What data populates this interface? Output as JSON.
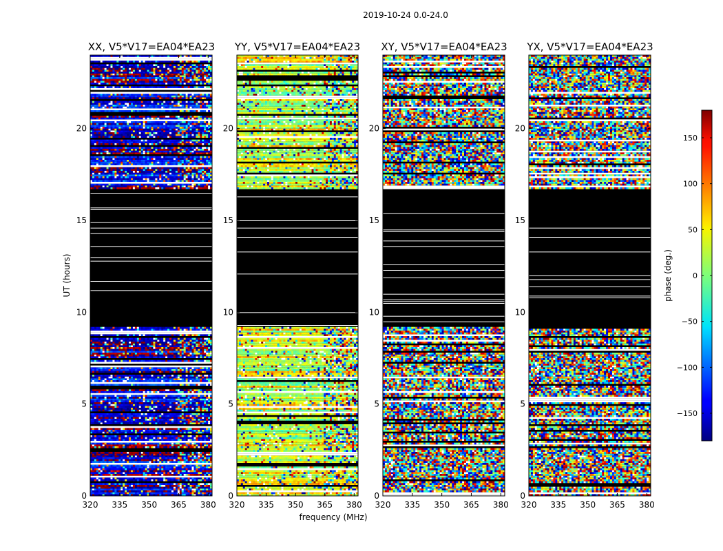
{
  "figure": {
    "suptitle": "2019-10-24 0.0-24.0"
  },
  "chart_data": {
    "type": "heatmap",
    "xlabel": "frequency (MHz)",
    "ylabel": "UT (hours)",
    "xlim": [
      320,
      382
    ],
    "ylim": [
      0,
      24
    ],
    "xticks": [
      "320",
      "335",
      "350",
      "365",
      "380"
    ],
    "xtick_values": [
      320,
      335,
      350,
      365,
      380
    ],
    "yticks": [
      "0",
      "5",
      "10",
      "15",
      "20"
    ],
    "ytick_values": [
      0,
      5,
      10,
      15,
      20
    ],
    "flagged_color": "#000000",
    "flagged_ut_range": [
      9.2,
      16.7
    ],
    "colormap": "jet",
    "colorbar": {
      "label": "phase (deg.)",
      "range": [
        -180,
        180
      ],
      "ticks": [
        "150",
        "100",
        "50",
        "0",
        "−50",
        "−100",
        "−150"
      ],
      "tick_values": [
        150,
        100,
        50,
        0,
        -50,
        -100,
        -150
      ]
    },
    "panels": [
      {
        "title": "XX, V5*V17=EA04*EA23",
        "dominant_phase": -150
      },
      {
        "title": "YY, V5*V17=EA04*EA23",
        "dominant_phase": 30
      },
      {
        "title": "XY, V5*V17=EA04*EA23",
        "dominant_phase": "noise"
      },
      {
        "title": "YX, V5*V17=EA04*EA23",
        "dominant_phase": "noise"
      }
    ]
  }
}
